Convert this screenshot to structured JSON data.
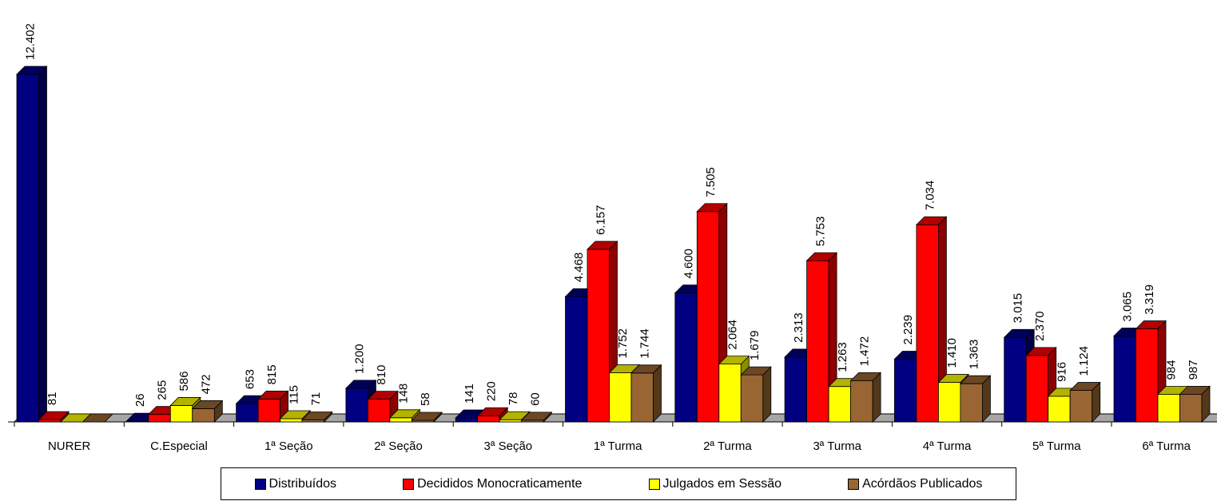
{
  "chart_data": {
    "type": "bar",
    "categories": [
      "NURER",
      "C.Especial",
      "1ª Seção",
      "2ª Seção",
      "3ª Seção",
      "1ª Turma",
      "2ª Turma",
      "3ª Turma",
      "4ª Turma",
      "5ª Turma",
      "6ª Turma"
    ],
    "series": [
      {
        "name": "Distribuídos",
        "color": "#000080",
        "values": [
          12402,
          26,
          653,
          1200,
          141,
          4468,
          4600,
          2313,
          2239,
          3015,
          3065
        ],
        "labels": [
          "12.402",
          "26",
          "653",
          "1.200",
          "141",
          "4.468",
          "4.600",
          "2.313",
          "2.239",
          "3.015",
          "3.065"
        ]
      },
      {
        "name": "Decididos Monocraticamente",
        "color": "#ff0000",
        "values": [
          81,
          265,
          815,
          810,
          220,
          6157,
          7505,
          5753,
          7034,
          2370,
          3319
        ],
        "labels": [
          "81",
          "265",
          "815",
          "810",
          "220",
          "6.157",
          "7.505",
          "5.753",
          "7.034",
          "2.370",
          "3.319"
        ]
      },
      {
        "name": "Julgados em Sessão",
        "color": "#ffff00",
        "values": [
          0,
          586,
          115,
          148,
          78,
          1752,
          2064,
          1263,
          1410,
          916,
          984
        ],
        "labels": [
          "",
          "586",
          "115",
          "148",
          "78",
          "1.752",
          "2.064",
          "1.263",
          "1.410",
          "916",
          "984"
        ]
      },
      {
        "name": "Acórdãos Publicados",
        "color": "#996633",
        "values": [
          0,
          472,
          71,
          58,
          60,
          1744,
          1679,
          1472,
          1363,
          1124,
          987
        ],
        "labels": [
          "",
          "472",
          "71",
          "58",
          "60",
          "1.744",
          "1.679",
          "1.472",
          "1.363",
          "1.124",
          "987"
        ]
      }
    ],
    "ylim": [
      0,
      12402
    ],
    "grid": false,
    "legend": "bottom",
    "style": "3d-bar"
  }
}
